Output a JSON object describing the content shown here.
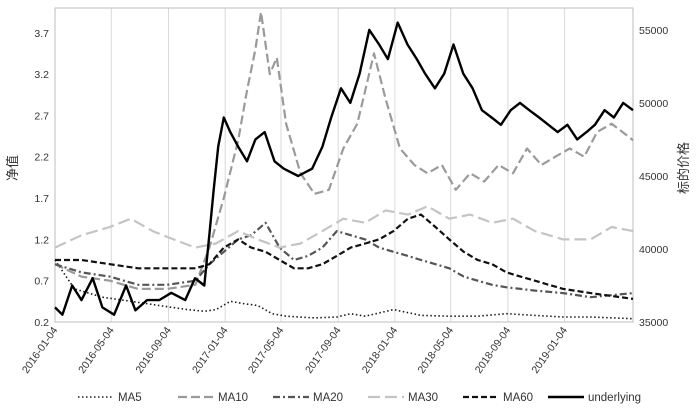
{
  "chart_data": {
    "type": "line",
    "title": "",
    "ylabel_left": "净值",
    "ylabel_right": "标的价格",
    "x_ticks": [
      "2016-01-04",
      "2016-05-04",
      "2016-09-04",
      "2017-01-04",
      "2017-05-04",
      "2017-09-04",
      "2018-01-04",
      "2018-05-04",
      "2018-09-04",
      "2019-01-04"
    ],
    "x_range": [
      "2016-01-04",
      "2019-05-31"
    ],
    "y_left_ticks": [
      "0.2",
      "0.7",
      "1.2",
      "1.7",
      "2.2",
      "2.7",
      "3.2",
      "3.7"
    ],
    "y_left_range": [
      0.2,
      4.0
    ],
    "y_right_ticks": [
      "35000",
      "40000",
      "45000",
      "50000",
      "55000"
    ],
    "y_right_range": [
      35000,
      56500
    ],
    "grid": "vertical",
    "legend_position": "bottom",
    "series": [
      {
        "name": "MA5",
        "axis": "left",
        "color": "#1a1a1a",
        "dash": "dotted",
        "points": [
          [
            "2016-01-04",
            0.95
          ],
          [
            "2016-02-15",
            0.6
          ],
          [
            "2016-04-15",
            0.5
          ],
          [
            "2016-06-15",
            0.45
          ],
          [
            "2016-08-15",
            0.4
          ],
          [
            "2016-10-15",
            0.35
          ],
          [
            "2016-11-20",
            0.33
          ],
          [
            "2016-12-15",
            0.35
          ],
          [
            "2017-01-15",
            0.45
          ],
          [
            "2017-02-15",
            0.42
          ],
          [
            "2017-03-15",
            0.4
          ],
          [
            "2017-04-15",
            0.3
          ],
          [
            "2017-05-15",
            0.27
          ],
          [
            "2017-07-15",
            0.25
          ],
          [
            "2017-09-01",
            0.26
          ],
          [
            "2017-10-01",
            0.3
          ],
          [
            "2017-11-01",
            0.27
          ],
          [
            "2018-01-01",
            0.35
          ],
          [
            "2018-03-01",
            0.28
          ],
          [
            "2018-05-01",
            0.27
          ],
          [
            "2018-07-01",
            0.27
          ],
          [
            "2018-09-01",
            0.3
          ],
          [
            "2018-11-01",
            0.28
          ],
          [
            "2019-01-01",
            0.26
          ],
          [
            "2019-03-01",
            0.26
          ],
          [
            "2019-05-31",
            0.24
          ]
        ]
      },
      {
        "name": "MA10",
        "axis": "left",
        "color": "#9a9a9a",
        "dash": "long",
        "points": [
          [
            "2016-01-04",
            0.9
          ],
          [
            "2016-03-01",
            0.75
          ],
          [
            "2016-05-01",
            0.7
          ],
          [
            "2016-07-01",
            0.6
          ],
          [
            "2016-09-01",
            0.6
          ],
          [
            "2016-11-01",
            0.65
          ],
          [
            "2016-12-01",
            1.1
          ],
          [
            "2017-01-01",
            1.7
          ],
          [
            "2017-02-01",
            2.4
          ],
          [
            "2017-02-20",
            3.0
          ],
          [
            "2017-03-10",
            3.5
          ],
          [
            "2017-03-22",
            3.95
          ],
          [
            "2017-04-10",
            3.2
          ],
          [
            "2017-04-25",
            3.4
          ],
          [
            "2017-05-15",
            2.6
          ],
          [
            "2017-06-15",
            2.0
          ],
          [
            "2017-07-15",
            1.75
          ],
          [
            "2017-08-15",
            1.8
          ],
          [
            "2017-09-15",
            2.3
          ],
          [
            "2017-10-15",
            2.6
          ],
          [
            "2017-11-01",
            3.0
          ],
          [
            "2017-11-20",
            3.45
          ],
          [
            "2017-12-15",
            2.9
          ],
          [
            "2018-01-15",
            2.3
          ],
          [
            "2018-02-15",
            2.1
          ],
          [
            "2018-03-15",
            2.0
          ],
          [
            "2018-04-15",
            2.1
          ],
          [
            "2018-05-15",
            1.8
          ],
          [
            "2018-06-15",
            2.0
          ],
          [
            "2018-07-15",
            1.9
          ],
          [
            "2018-08-15",
            2.1
          ],
          [
            "2018-09-15",
            2.0
          ],
          [
            "2018-10-15",
            2.3
          ],
          [
            "2018-11-15",
            2.1
          ],
          [
            "2018-12-15",
            2.2
          ],
          [
            "2019-01-15",
            2.3
          ],
          [
            "2019-02-15",
            2.2
          ],
          [
            "2019-03-15",
            2.5
          ],
          [
            "2019-04-15",
            2.6
          ],
          [
            "2019-05-31",
            2.4
          ]
        ]
      },
      {
        "name": "MA20",
        "axis": "left",
        "color": "#555555",
        "dash": "dashdot",
        "points": [
          [
            "2016-01-04",
            0.9
          ],
          [
            "2016-03-01",
            0.8
          ],
          [
            "2016-05-01",
            0.75
          ],
          [
            "2016-07-01",
            0.65
          ],
          [
            "2016-09-01",
            0.65
          ],
          [
            "2016-11-01",
            0.7
          ],
          [
            "2016-12-01",
            0.9
          ],
          [
            "2017-01-01",
            1.05
          ],
          [
            "2017-02-01",
            1.2
          ],
          [
            "2017-03-01",
            1.25
          ],
          [
            "2017-04-01",
            1.4
          ],
          [
            "2017-05-01",
            1.1
          ],
          [
            "2017-06-01",
            0.95
          ],
          [
            "2017-07-01",
            1.0
          ],
          [
            "2017-08-01",
            1.1
          ],
          [
            "2017-09-01",
            1.3
          ],
          [
            "2017-10-01",
            1.25
          ],
          [
            "2017-11-01",
            1.2
          ],
          [
            "2017-12-01",
            1.1
          ],
          [
            "2018-01-01",
            1.05
          ],
          [
            "2018-02-01",
            1.0
          ],
          [
            "2018-03-01",
            0.95
          ],
          [
            "2018-04-01",
            0.9
          ],
          [
            "2018-05-01",
            0.85
          ],
          [
            "2018-06-01",
            0.75
          ],
          [
            "2018-07-01",
            0.7
          ],
          [
            "2018-08-01",
            0.65
          ],
          [
            "2018-09-01",
            0.62
          ],
          [
            "2018-10-01",
            0.6
          ],
          [
            "2018-11-01",
            0.58
          ],
          [
            "2019-01-01",
            0.55
          ],
          [
            "2019-03-01",
            0.5
          ],
          [
            "2019-05-31",
            0.55
          ]
        ]
      },
      {
        "name": "MA30",
        "axis": "left",
        "color": "#c4c4c4",
        "dash": "longdash",
        "points": [
          [
            "2016-01-04",
            1.1
          ],
          [
            "2016-03-01",
            1.25
          ],
          [
            "2016-05-01",
            1.35
          ],
          [
            "2016-06-15",
            1.45
          ],
          [
            "2016-08-01",
            1.3
          ],
          [
            "2016-09-15",
            1.2
          ],
          [
            "2016-11-01",
            1.1
          ],
          [
            "2016-12-15",
            1.15
          ],
          [
            "2017-02-01",
            1.3
          ],
          [
            "2017-03-15",
            1.2
          ],
          [
            "2017-05-01",
            1.1
          ],
          [
            "2017-06-15",
            1.15
          ],
          [
            "2017-08-01",
            1.3
          ],
          [
            "2017-09-15",
            1.45
          ],
          [
            "2017-11-01",
            1.4
          ],
          [
            "2017-12-15",
            1.55
          ],
          [
            "2018-02-01",
            1.5
          ],
          [
            "2018-03-15",
            1.6
          ],
          [
            "2018-05-01",
            1.45
          ],
          [
            "2018-06-15",
            1.5
          ],
          [
            "2018-08-01",
            1.4
          ],
          [
            "2018-09-15",
            1.45
          ],
          [
            "2018-11-01",
            1.3
          ],
          [
            "2019-01-01",
            1.2
          ],
          [
            "2019-03-01",
            1.2
          ],
          [
            "2019-04-15",
            1.35
          ],
          [
            "2019-05-31",
            1.3
          ]
        ]
      },
      {
        "name": "MA60",
        "axis": "left",
        "color": "#111111",
        "dash": "dash",
        "points": [
          [
            "2016-01-04",
            0.95
          ],
          [
            "2016-03-01",
            0.95
          ],
          [
            "2016-05-01",
            0.9
          ],
          [
            "2016-07-01",
            0.85
          ],
          [
            "2016-09-01",
            0.85
          ],
          [
            "2016-11-01",
            0.85
          ],
          [
            "2016-12-01",
            0.9
          ],
          [
            "2017-01-01",
            1.1
          ],
          [
            "2017-02-01",
            1.2
          ],
          [
            "2017-03-01",
            1.1
          ],
          [
            "2017-04-01",
            1.05
          ],
          [
            "2017-05-01",
            0.95
          ],
          [
            "2017-06-01",
            0.85
          ],
          [
            "2017-07-01",
            0.85
          ],
          [
            "2017-08-01",
            0.9
          ],
          [
            "2017-09-01",
            1.0
          ],
          [
            "2017-10-01",
            1.1
          ],
          [
            "2017-11-01",
            1.15
          ],
          [
            "2017-12-01",
            1.2
          ],
          [
            "2018-01-01",
            1.3
          ],
          [
            "2018-02-01",
            1.45
          ],
          [
            "2018-03-01",
            1.5
          ],
          [
            "2018-04-01",
            1.35
          ],
          [
            "2018-05-01",
            1.2
          ],
          [
            "2018-06-01",
            1.05
          ],
          [
            "2018-07-01",
            0.95
          ],
          [
            "2018-08-01",
            0.9
          ],
          [
            "2018-09-01",
            0.8
          ],
          [
            "2018-10-01",
            0.75
          ],
          [
            "2018-11-01",
            0.7
          ],
          [
            "2018-12-01",
            0.65
          ],
          [
            "2019-01-01",
            0.6
          ],
          [
            "2019-03-01",
            0.55
          ],
          [
            "2019-05-31",
            0.48
          ]
        ]
      },
      {
        "name": "underlying",
        "axis": "right",
        "color": "#000000",
        "dash": "solid",
        "points": [
          [
            "2016-01-04",
            36000
          ],
          [
            "2016-01-20",
            35500
          ],
          [
            "2016-02-10",
            37500
          ],
          [
            "2016-03-01",
            36500
          ],
          [
            "2016-03-25",
            38000
          ],
          [
            "2016-04-15",
            36000
          ],
          [
            "2016-05-10",
            35500
          ],
          [
            "2016-06-05",
            37500
          ],
          [
            "2016-06-25",
            35800
          ],
          [
            "2016-07-20",
            36500
          ],
          [
            "2016-08-15",
            36500
          ],
          [
            "2016-09-10",
            37000
          ],
          [
            "2016-10-10",
            36500
          ],
          [
            "2016-10-31",
            38000
          ],
          [
            "2016-11-20",
            37500
          ],
          [
            "2016-12-01",
            41000
          ],
          [
            "2016-12-10",
            44000
          ],
          [
            "2016-12-20",
            47000
          ],
          [
            "2017-01-01",
            49000
          ],
          [
            "2017-01-15",
            48000
          ],
          [
            "2017-02-01",
            47000
          ],
          [
            "2017-02-20",
            46000
          ],
          [
            "2017-03-10",
            47500
          ],
          [
            "2017-03-30",
            48000
          ],
          [
            "2017-04-20",
            46000
          ],
          [
            "2017-05-10",
            45500
          ],
          [
            "2017-06-10",
            45000
          ],
          [
            "2017-07-10",
            45500
          ],
          [
            "2017-08-01",
            47000
          ],
          [
            "2017-08-20",
            49000
          ],
          [
            "2017-09-10",
            51000
          ],
          [
            "2017-09-30",
            50000
          ],
          [
            "2017-10-20",
            52000
          ],
          [
            "2017-11-10",
            55000
          ],
          [
            "2017-12-01",
            54000
          ],
          [
            "2017-12-20",
            53000
          ],
          [
            "2018-01-10",
            55500
          ],
          [
            "2018-01-31",
            54000
          ],
          [
            "2018-02-20",
            53000
          ],
          [
            "2018-03-10",
            52000
          ],
          [
            "2018-03-31",
            51000
          ],
          [
            "2018-04-20",
            52000
          ],
          [
            "2018-05-10",
            54000
          ],
          [
            "2018-05-31",
            52000
          ],
          [
            "2018-06-20",
            51000
          ],
          [
            "2018-07-10",
            49500
          ],
          [
            "2018-07-31",
            49000
          ],
          [
            "2018-08-20",
            48500
          ],
          [
            "2018-09-10",
            49500
          ],
          [
            "2018-09-30",
            50000
          ],
          [
            "2018-10-20",
            49500
          ],
          [
            "2018-11-10",
            49000
          ],
          [
            "2018-11-30",
            48500
          ],
          [
            "2018-12-20",
            48000
          ],
          [
            "2019-01-10",
            48500
          ],
          [
            "2019-01-31",
            47500
          ],
          [
            "2019-02-20",
            48000
          ],
          [
            "2019-03-10",
            48500
          ],
          [
            "2019-03-31",
            49500
          ],
          [
            "2019-04-20",
            49000
          ],
          [
            "2019-05-10",
            50000
          ],
          [
            "2019-05-31",
            49500
          ]
        ]
      }
    ]
  }
}
